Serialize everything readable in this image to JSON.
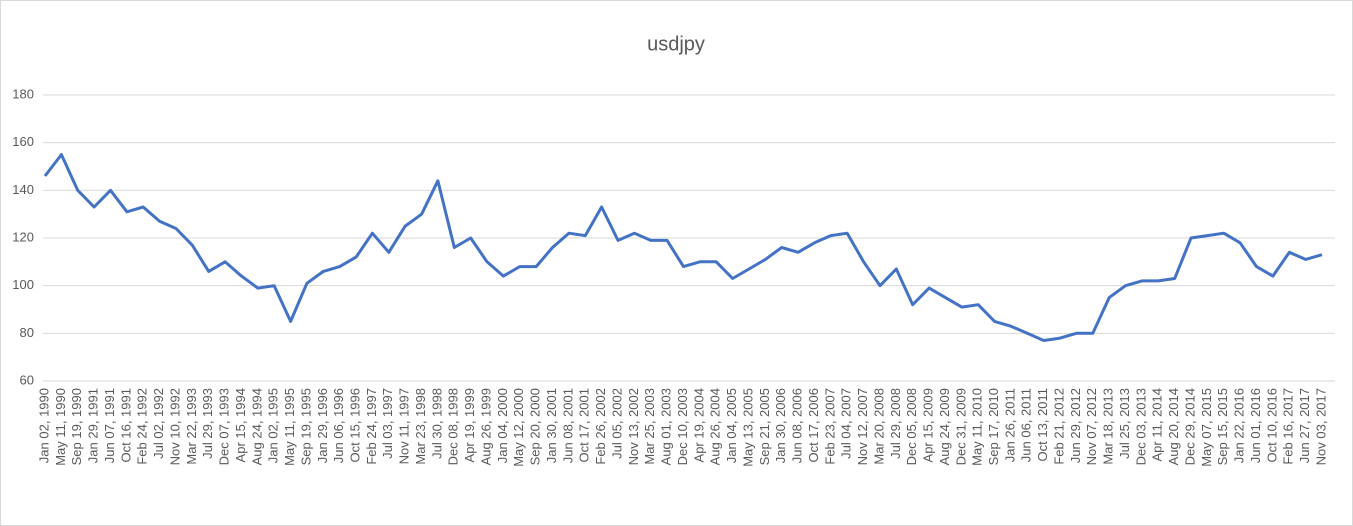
{
  "chart_data": {
    "type": "line",
    "title": "usdjpy",
    "categories": [
      "Jan 02, 1990",
      "May 11, 1990",
      "Sep 19, 1990",
      "Jan 29, 1991",
      "Jun 07, 1991",
      "Oct 16, 1991",
      "Feb 24, 1992",
      "Jul 02, 1992",
      "Nov 10, 1992",
      "Mar 22, 1993",
      "Jul 29, 1993",
      "Dec 07, 1993",
      "Apr 15, 1994",
      "Aug 24, 1994",
      "Jan 02, 1995",
      "May 11, 1995",
      "Sep 19, 1995",
      "Jan 29, 1996",
      "Jun 06, 1996",
      "Oct 15, 1996",
      "Feb 24, 1997",
      "Jul 03, 1997",
      "Nov 11, 1997",
      "Mar 23, 1998",
      "Jul 30, 1998",
      "Dec 08, 1998",
      "Apr 19, 1999",
      "Aug 26, 1999",
      "Jan 04, 2000",
      "May 12, 2000",
      "Sep 20, 2000",
      "Jan 30, 2001",
      "Jun 08, 2001",
      "Oct 17, 2001",
      "Feb 26, 2002",
      "Jul 05, 2002",
      "Nov 13, 2002",
      "Mar 25, 2003",
      "Aug 01, 2003",
      "Dec 10, 2003",
      "Apr 19, 2004",
      "Aug 26, 2004",
      "Jan 04, 2005",
      "May 13, 2005",
      "Sep 21, 2005",
      "Jan 30, 2006",
      "Jun 08, 2006",
      "Oct 17, 2006",
      "Feb 23, 2007",
      "Jul 04, 2007",
      "Nov 12, 2007",
      "Mar 20, 2008",
      "Jul 29, 2008",
      "Dec 05, 2008",
      "Apr 15, 2009",
      "Aug 24, 2009",
      "Dec 31, 2009",
      "May 11, 2010",
      "Sep 17, 2010",
      "Jan 26, 2011",
      "Jun 06, 2011",
      "Oct 13, 2011",
      "Feb 21, 2012",
      "Jun 29, 2012",
      "Nov 07, 2012",
      "Mar 18, 2013",
      "Jul 25, 2013",
      "Dec 03, 2013",
      "Apr 11, 2014",
      "Aug 20, 2014",
      "Dec 29, 2014",
      "May 07, 2015",
      "Sep 15, 2015",
      "Jan 22, 2016",
      "Jun 01, 2016",
      "Oct 10, 2016",
      "Feb 16, 2017",
      "Jun 27, 2017",
      "Nov 03, 2017"
    ],
    "series": [
      {
        "name": "usdjpy",
        "color": "#4472c4",
        "values": [
          146,
          155,
          140,
          133,
          140,
          131,
          133,
          127,
          124,
          117,
          106,
          110,
          104,
          99,
          100,
          85,
          101,
          106,
          108,
          112,
          122,
          114,
          125,
          130,
          144,
          116,
          120,
          110,
          104,
          108,
          108,
          116,
          122,
          121,
          133,
          119,
          122,
          119,
          119,
          108,
          110,
          110,
          103,
          107,
          111,
          116,
          114,
          118,
          121,
          122,
          110,
          100,
          107,
          92,
          99,
          95,
          91,
          92,
          85,
          83,
          80,
          77,
          78,
          80,
          80,
          95,
          100,
          102,
          102,
          103,
          120,
          121,
          122,
          118,
          108,
          104,
          114,
          111,
          113
        ]
      }
    ],
    "ylim": [
      60,
      180
    ],
    "yticks": [
      60,
      80,
      100,
      120,
      140,
      160,
      180
    ],
    "grid": true
  }
}
